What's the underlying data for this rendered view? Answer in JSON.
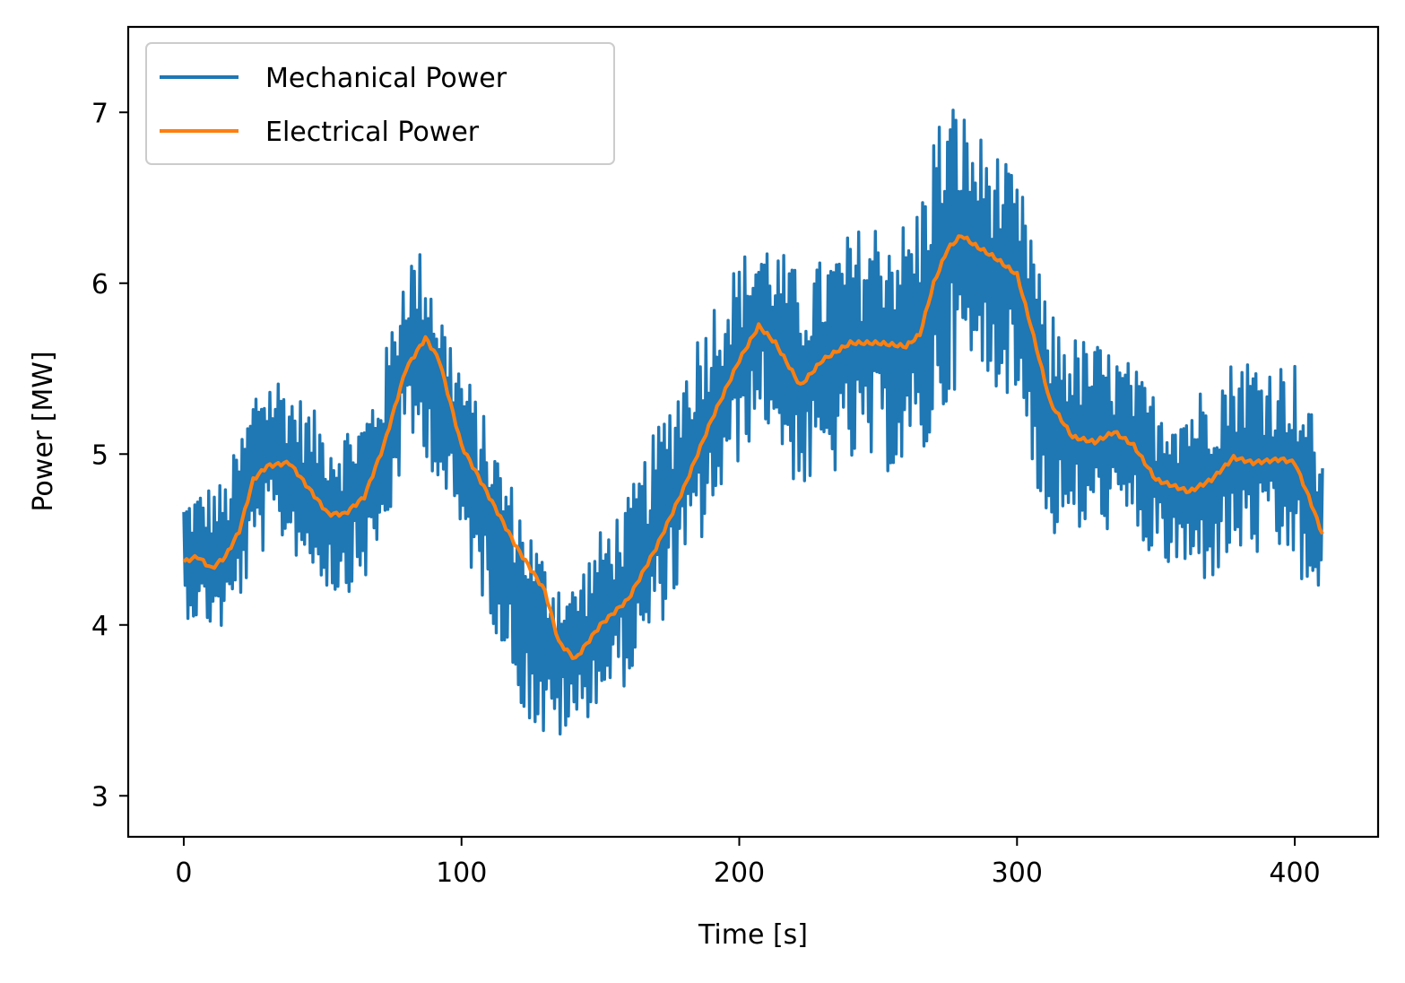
{
  "chart_data": {
    "type": "line",
    "title": "",
    "xlabel": "Time [s]",
    "ylabel": "Power [MW]",
    "xlim": [
      -20,
      430
    ],
    "ylim": [
      2.76,
      7.5
    ],
    "x_ticks": [
      0,
      100,
      200,
      300,
      400
    ],
    "y_ticks": [
      3,
      4,
      5,
      6,
      7
    ],
    "grid": false,
    "legend": {
      "position": "top-left"
    },
    "series": [
      {
        "name": "Mechanical Power",
        "color": "#1f77b4",
        "x": [
          0,
          8,
          15,
          22,
          27,
          35,
          45,
          55,
          65,
          72,
          80,
          87,
          95,
          105,
          115,
          123,
          130,
          140,
          150,
          160,
          170,
          180,
          190,
          200,
          208,
          215,
          222,
          230,
          240,
          250,
          260,
          265,
          270,
          278,
          285,
          292,
          300,
          305,
          310,
          320,
          330,
          340,
          350,
          362,
          370,
          380,
          390,
          400,
          405,
          410
        ],
        "y": [
          4.4,
          4.4,
          4.4,
          4.7,
          4.95,
          4.98,
          4.8,
          4.65,
          4.75,
          5.0,
          5.6,
          5.6,
          5.2,
          4.8,
          4.4,
          4.05,
          3.85,
          3.8,
          4.05,
          4.2,
          4.55,
          4.9,
          5.25,
          5.55,
          5.75,
          5.6,
          5.4,
          5.5,
          5.6,
          5.65,
          5.62,
          5.7,
          6.0,
          6.25,
          6.15,
          6.1,
          5.95,
          5.7,
          5.2,
          5.1,
          5.1,
          5.05,
          4.85,
          4.8,
          4.85,
          5.0,
          4.97,
          4.95,
          4.7,
          4.5
        ],
        "amplitude": [
          0.35,
          0.42,
          0.45,
          0.5,
          0.55,
          0.5,
          0.48,
          0.5,
          0.5,
          0.55,
          0.6,
          0.6,
          0.55,
          0.55,
          0.55,
          0.6,
          0.55,
          0.45,
          0.5,
          0.55,
          0.6,
          0.65,
          0.65,
          0.6,
          0.55,
          0.6,
          0.65,
          0.65,
          0.7,
          0.75,
          0.75,
          0.8,
          0.95,
          0.85,
          0.75,
          0.7,
          0.65,
          0.7,
          0.7,
          0.6,
          0.55,
          0.5,
          0.5,
          0.55,
          0.6,
          0.6,
          0.6,
          0.6,
          0.6,
          0.55
        ]
      },
      {
        "name": "Electrical Power",
        "color": "#ff7f0e",
        "x": [
          0,
          5,
          10,
          15,
          20,
          25,
          30,
          38,
          45,
          52,
          58,
          65,
          72,
          80,
          87,
          92,
          100,
          110,
          120,
          130,
          135,
          141,
          150,
          160,
          170,
          180,
          190,
          200,
          207,
          213,
          222,
          230,
          240,
          250,
          260,
          265,
          270,
          275,
          280,
          285,
          292,
          300,
          305,
          312,
          320,
          328,
          335,
          342,
          350,
          362,
          370,
          378,
          385,
          395,
          400,
          405,
          410
        ],
        "y": [
          4.37,
          4.4,
          4.33,
          4.4,
          4.55,
          4.85,
          4.93,
          4.95,
          4.8,
          4.65,
          4.65,
          4.75,
          5.05,
          5.5,
          5.68,
          5.55,
          5.05,
          4.75,
          4.45,
          4.2,
          3.9,
          3.8,
          4.0,
          4.15,
          4.45,
          4.8,
          5.2,
          5.55,
          5.75,
          5.65,
          5.4,
          5.55,
          5.65,
          5.65,
          5.63,
          5.7,
          6.0,
          6.2,
          6.28,
          6.22,
          6.15,
          6.05,
          5.75,
          5.3,
          5.1,
          5.07,
          5.13,
          5.05,
          4.85,
          4.78,
          4.85,
          4.98,
          4.95,
          4.97,
          4.95,
          4.75,
          4.53
        ]
      }
    ]
  }
}
